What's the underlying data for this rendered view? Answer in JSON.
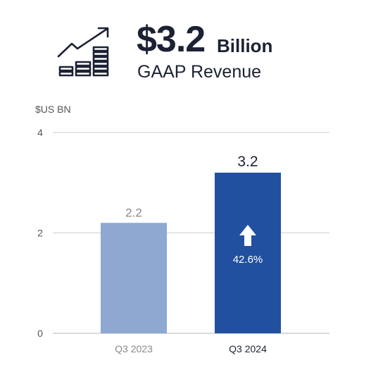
{
  "headline": {
    "value": "$3.2",
    "unit": "Billion",
    "label": "GAAP Revenue",
    "icon": "growth-chart-icon"
  },
  "colors": {
    "dark_bar": "#2150a0",
    "light_bar": "#8ea8d2",
    "grid": "#cfcfcf",
    "text": "#1c2233",
    "muted_text": "#888888"
  },
  "chart_data": {
    "type": "bar",
    "title": "",
    "ylabel": "$US BN",
    "xlabel": "",
    "ylim": [
      0,
      4
    ],
    "yticks": [
      0,
      2,
      4
    ],
    "grid": true,
    "categories": [
      "Q3 2023",
      "Q3 2024"
    ],
    "values": [
      2.2,
      3.2
    ],
    "value_labels": [
      "2.2",
      "3.2"
    ],
    "annotation": {
      "category": "Q3 2024",
      "text": "42.6%",
      "icon": "up-arrow-icon"
    }
  }
}
